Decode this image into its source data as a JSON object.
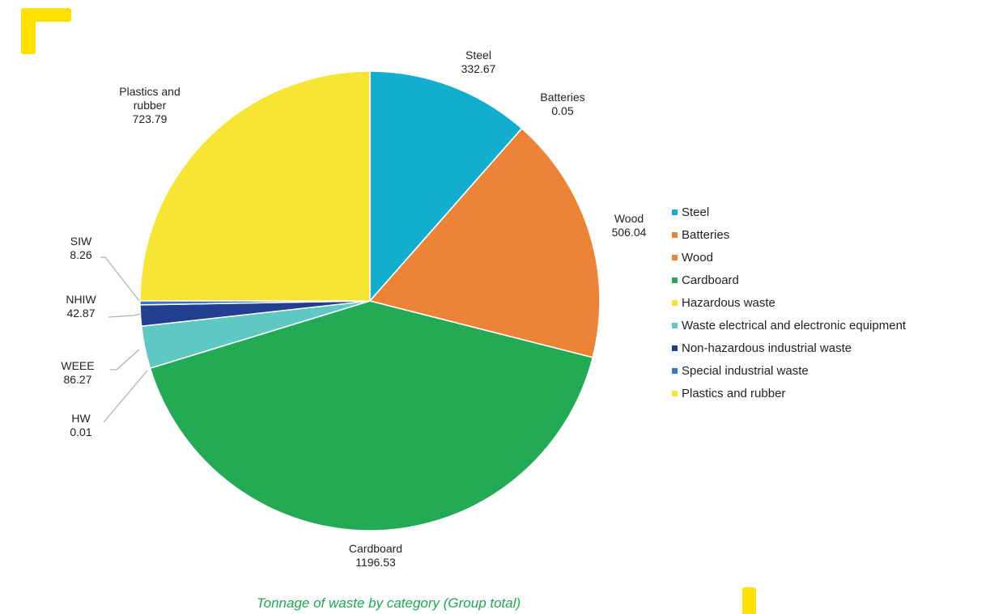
{
  "caption": "Tonnage of waste by category (Group total)",
  "chart_data": {
    "type": "pie",
    "title": "",
    "slices": [
      {
        "legend": "Steel",
        "label": "Steel",
        "value": 332.67,
        "value_text": "332.67",
        "color": "#12AECF"
      },
      {
        "legend": "Batteries",
        "label": "Batteries",
        "value": 0.05,
        "value_text": "0.05",
        "color": "#EC8336"
      },
      {
        "legend": "Wood",
        "label": "Wood",
        "value": 506.04,
        "value_text": "506.04",
        "color": "#EC8336"
      },
      {
        "legend": "Cardboard",
        "label": "Cardboard",
        "value": 1196.53,
        "value_text": "1196.53",
        "color": "#22AA55"
      },
      {
        "legend": "Hazardous waste",
        "label": "HW",
        "value": 0.01,
        "value_text": "0.01",
        "color": "#F7E233"
      },
      {
        "legend": "Waste electrical and electronic equipment",
        "label": "WEEE",
        "value": 86.27,
        "value_text": "86.27",
        "color": "#5EC9C3"
      },
      {
        "legend": "Non-hazardous industrial waste",
        "label": "NHIW",
        "value": 42.87,
        "value_text": "42.87",
        "color": "#213E8F"
      },
      {
        "legend": "Special industrial waste",
        "label": "SIW",
        "value": 8.26,
        "value_text": "8.26",
        "color": "#3A74C2"
      },
      {
        "legend": "Plastics and rubber",
        "label": "Plastics and rubber",
        "value": 723.79,
        "value_text": "723.79",
        "color": "#F8E533"
      }
    ],
    "legend_position": "right"
  }
}
